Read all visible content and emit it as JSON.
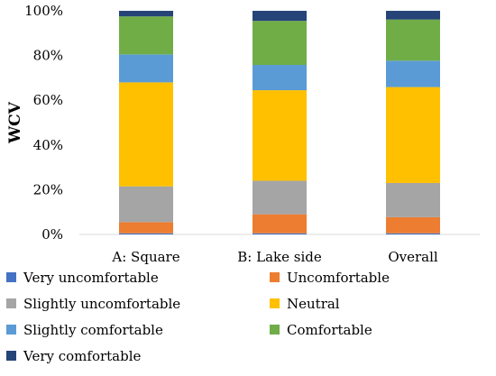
{
  "chart_data": {
    "type": "bar",
    "stacked": true,
    "percent_stacked": true,
    "title": "",
    "xlabel": "",
    "ylabel": "WCV",
    "ylim": [
      0,
      100
    ],
    "yticks": [
      "0%",
      "20%",
      "40%",
      "60%",
      "80%",
      "100%"
    ],
    "ytick_values": [
      0,
      20,
      40,
      60,
      80,
      100
    ],
    "grid": false,
    "legend_position": "bottom",
    "categories": [
      "A: Square",
      "B: Lake side",
      "Overall"
    ],
    "series": [
      {
        "name": "Very uncomfortable",
        "color": "#4472C4",
        "values": [
          0.5,
          0.5,
          0.5
        ]
      },
      {
        "name": "Uncomfortable",
        "color": "#ED7D31",
        "values": [
          5.0,
          8.5,
          7.2
        ]
      },
      {
        "name": "Slightly uncomfortable",
        "color": "#A5A5A5",
        "values": [
          16.0,
          15.0,
          15.3
        ]
      },
      {
        "name": "Neutral",
        "color": "#FFC000",
        "values": [
          46.5,
          40.5,
          42.9
        ]
      },
      {
        "name": "Slightly comfortable",
        "color": "#5B9BD5",
        "values": [
          12.5,
          11.3,
          11.8
        ]
      },
      {
        "name": "Comfortable",
        "color": "#70AD47",
        "values": [
          17.0,
          19.7,
          18.4
        ]
      },
      {
        "name": "Very comfortable",
        "color": "#264478",
        "values": [
          2.5,
          4.5,
          3.9
        ]
      }
    ]
  }
}
